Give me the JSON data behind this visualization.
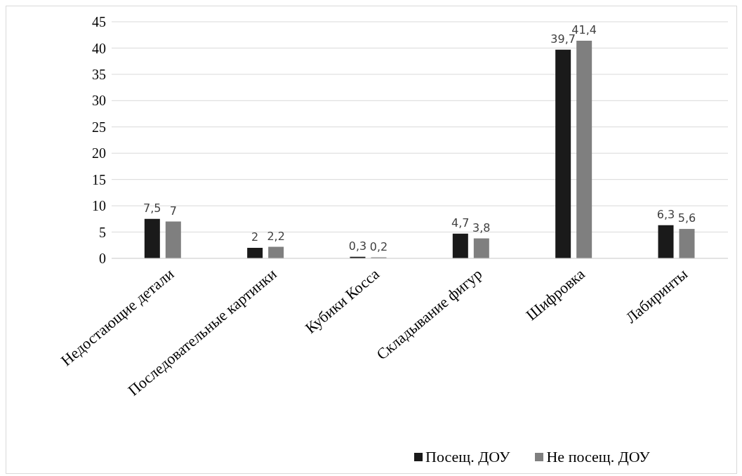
{
  "chart_data": {
    "type": "bar",
    "categories": [
      "Недостающие детали",
      "Последовательные картинки",
      "Кубики Косса",
      "Складывание фигур",
      "Шифровка",
      "Лабиринты"
    ],
    "series": [
      {
        "name": "Посещ. ДОУ",
        "color": "#1a1a1a",
        "values": [
          7.5,
          2,
          0.3,
          4.7,
          39.7,
          6.3
        ],
        "value_labels": [
          "7,5",
          "2",
          "0,3",
          "4,7",
          "39,7",
          "6,3"
        ]
      },
      {
        "name": "Не посещ. ДОУ",
        "color": "#7f7f7f",
        "values": [
          7,
          2.2,
          0.2,
          3.8,
          41.4,
          5.6
        ],
        "value_labels": [
          "7",
          "2,2",
          "0,2",
          "3,8",
          "41,4",
          "5,6"
        ]
      }
    ],
    "ylim": [
      0,
      45
    ],
    "yticks": [
      0,
      5,
      10,
      15,
      20,
      25,
      30,
      35,
      40,
      45
    ],
    "grid": "y",
    "legend": "bottom"
  }
}
